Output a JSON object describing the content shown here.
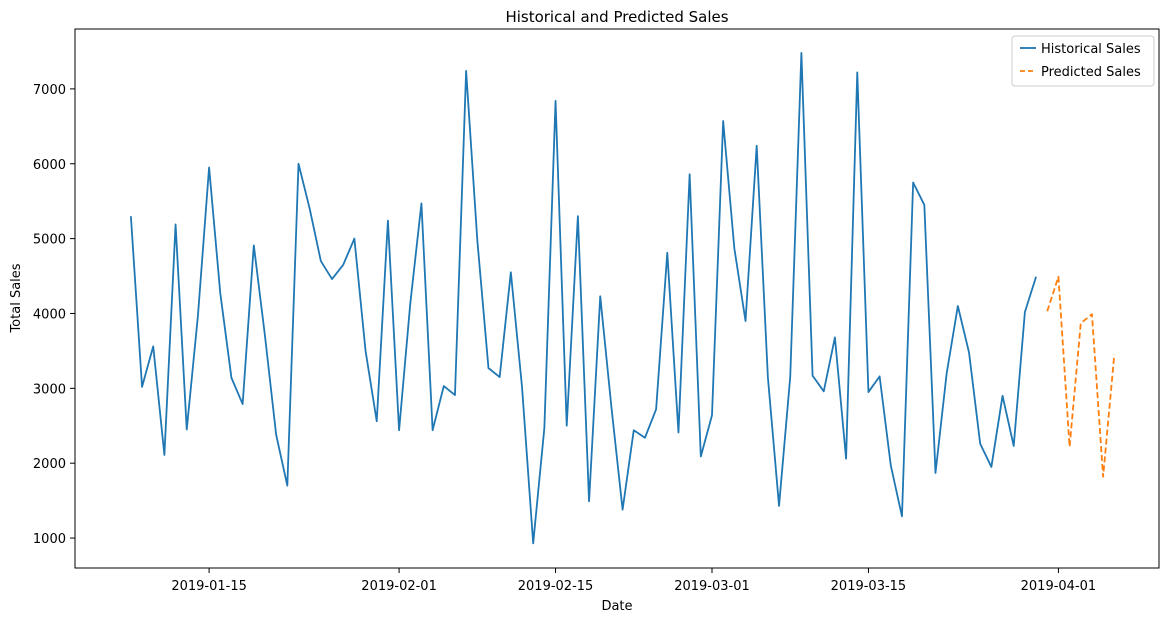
{
  "chart_data": {
    "type": "line",
    "title": "Historical and Predicted Sales",
    "xlabel": "Date",
    "ylabel": "Total Sales",
    "xlim": [
      "2019-01-03",
      "2019-04-10"
    ],
    "ylim": [
      600,
      7800
    ],
    "x_ticks": [
      "2019-01-15",
      "2019-02-01",
      "2019-02-15",
      "2019-03-01",
      "2019-03-15",
      "2019-04-01"
    ],
    "y_ticks": [
      1000,
      2000,
      3000,
      4000,
      5000,
      6000,
      7000
    ],
    "grid": false,
    "legend_position": "top-right",
    "series": [
      {
        "name": "Historical Sales",
        "color": "#1f77b4",
        "style": "solid",
        "x": [
          "2019-01-08",
          "2019-01-09",
          "2019-01-10",
          "2019-01-11",
          "2019-01-12",
          "2019-01-13",
          "2019-01-14",
          "2019-01-15",
          "2019-01-16",
          "2019-01-17",
          "2019-01-18",
          "2019-01-19",
          "2019-01-20",
          "2019-01-21",
          "2019-01-22",
          "2019-01-23",
          "2019-01-24",
          "2019-01-25",
          "2019-01-26",
          "2019-01-27",
          "2019-01-28",
          "2019-01-29",
          "2019-01-30",
          "2019-01-31",
          "2019-02-01",
          "2019-02-02",
          "2019-02-03",
          "2019-02-04",
          "2019-02-05",
          "2019-02-06",
          "2019-02-07",
          "2019-02-08",
          "2019-02-09",
          "2019-02-10",
          "2019-02-11",
          "2019-02-12",
          "2019-02-13",
          "2019-02-14",
          "2019-02-15",
          "2019-02-16",
          "2019-02-17",
          "2019-02-18",
          "2019-02-19",
          "2019-02-20",
          "2019-02-21",
          "2019-02-22",
          "2019-02-23",
          "2019-02-24",
          "2019-02-25",
          "2019-02-26",
          "2019-02-27",
          "2019-02-28",
          "2019-03-01",
          "2019-03-02",
          "2019-03-03",
          "2019-03-04",
          "2019-03-05",
          "2019-03-06",
          "2019-03-07",
          "2019-03-08",
          "2019-03-09",
          "2019-03-10",
          "2019-03-11",
          "2019-03-12",
          "2019-03-13",
          "2019-03-14",
          "2019-03-15",
          "2019-03-16",
          "2019-03-17",
          "2019-03-18",
          "2019-03-19",
          "2019-03-20",
          "2019-03-21",
          "2019-03-22",
          "2019-03-23",
          "2019-03-24",
          "2019-03-25",
          "2019-03-26",
          "2019-03-27",
          "2019-03-28",
          "2019-03-29",
          "2019-03-30"
        ],
        "values": [
          5300,
          3020,
          3560,
          2110,
          5190,
          2450,
          3970,
          5950,
          4270,
          3140,
          2790,
          4910,
          3700,
          2380,
          1700,
          6000,
          5400,
          4700,
          4460,
          4650,
          5000,
          3500,
          2560,
          5240,
          2440,
          4130,
          5470,
          2440,
          3030,
          2910,
          7240,
          4980,
          3270,
          3150,
          4550,
          3020,
          930,
          2470,
          6840,
          2500,
          5300,
          1490,
          4230,
          2750,
          1380,
          2440,
          2340,
          2720,
          4810,
          2410,
          5860,
          2090,
          2640,
          6570,
          4870,
          3900,
          6240,
          3150,
          1430,
          3150,
          7480,
          3170,
          2960,
          3680,
          2060,
          7220,
          2950,
          3160,
          1970,
          1290,
          5750,
          5450,
          1870,
          3200,
          4100,
          3480,
          2260,
          1950,
          2900,
          2230,
          4020,
          4490
        ]
      },
      {
        "name": "Predicted Sales",
        "color": "#ff7f0e",
        "style": "dashed",
        "x": [
          "2019-03-31",
          "2019-04-01",
          "2019-04-02",
          "2019-04-03",
          "2019-04-04",
          "2019-04-05",
          "2019-04-06"
        ],
        "values": [
          4030,
          4490,
          2220,
          3870,
          3990,
          1820,
          3450
        ]
      }
    ]
  }
}
